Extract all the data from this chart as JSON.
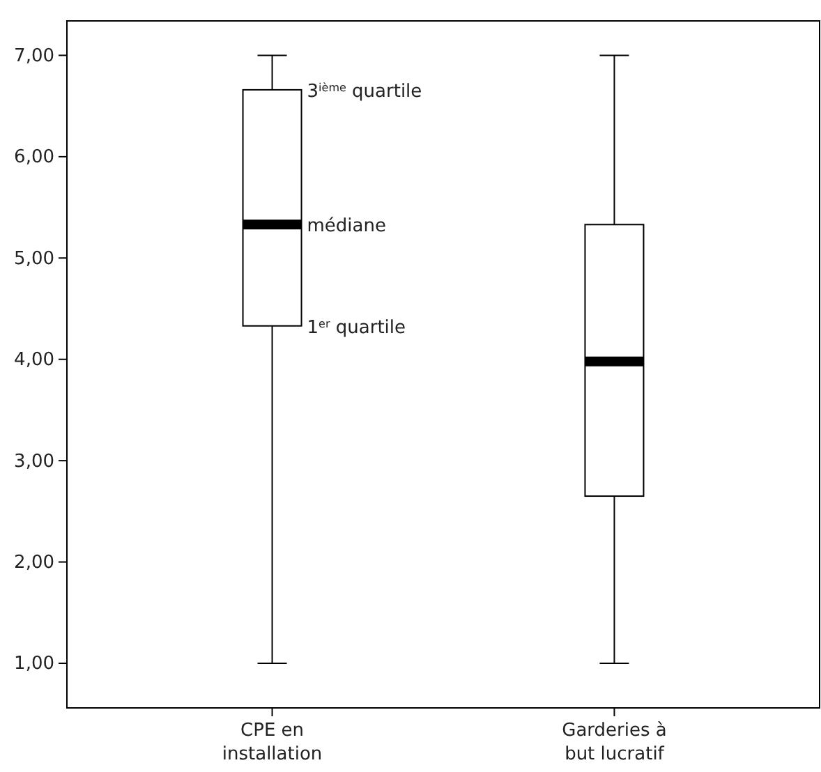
{
  "chart_data": {
    "type": "box",
    "categories": [
      "CPE en installation",
      "Garderies à but lucratif"
    ],
    "boxes": [
      {
        "low": 1,
        "q1": 4.33,
        "median": 5.33,
        "q3": 6.66,
        "high": 7
      },
      {
        "low": 1,
        "q1": 2.65,
        "median": 3.98,
        "q3": 5.33,
        "high": 7
      }
    ],
    "ylim": [
      0.56,
      7.34
    ],
    "yticks": [
      {
        "value": 1,
        "label": "1,00"
      },
      {
        "value": 2,
        "label": "2,00"
      },
      {
        "value": 3,
        "label": "3,00"
      },
      {
        "value": 4,
        "label": "4,00"
      },
      {
        "value": 5,
        "label": "5,00"
      },
      {
        "value": 6,
        "label": "6,00"
      },
      {
        "value": 7,
        "label": "7,00"
      }
    ],
    "annotations": [
      {
        "text": "3$^{ième}$ quartile",
        "x": "CPE en installation",
        "y": 6.66
      },
      {
        "text": "médiane",
        "x": "CPE en installation",
        "y": 5.33
      },
      {
        "text": "1$^{er}$ quartile",
        "x": "CPE en installation",
        "y": 4.33
      }
    ],
    "grid": false
  }
}
